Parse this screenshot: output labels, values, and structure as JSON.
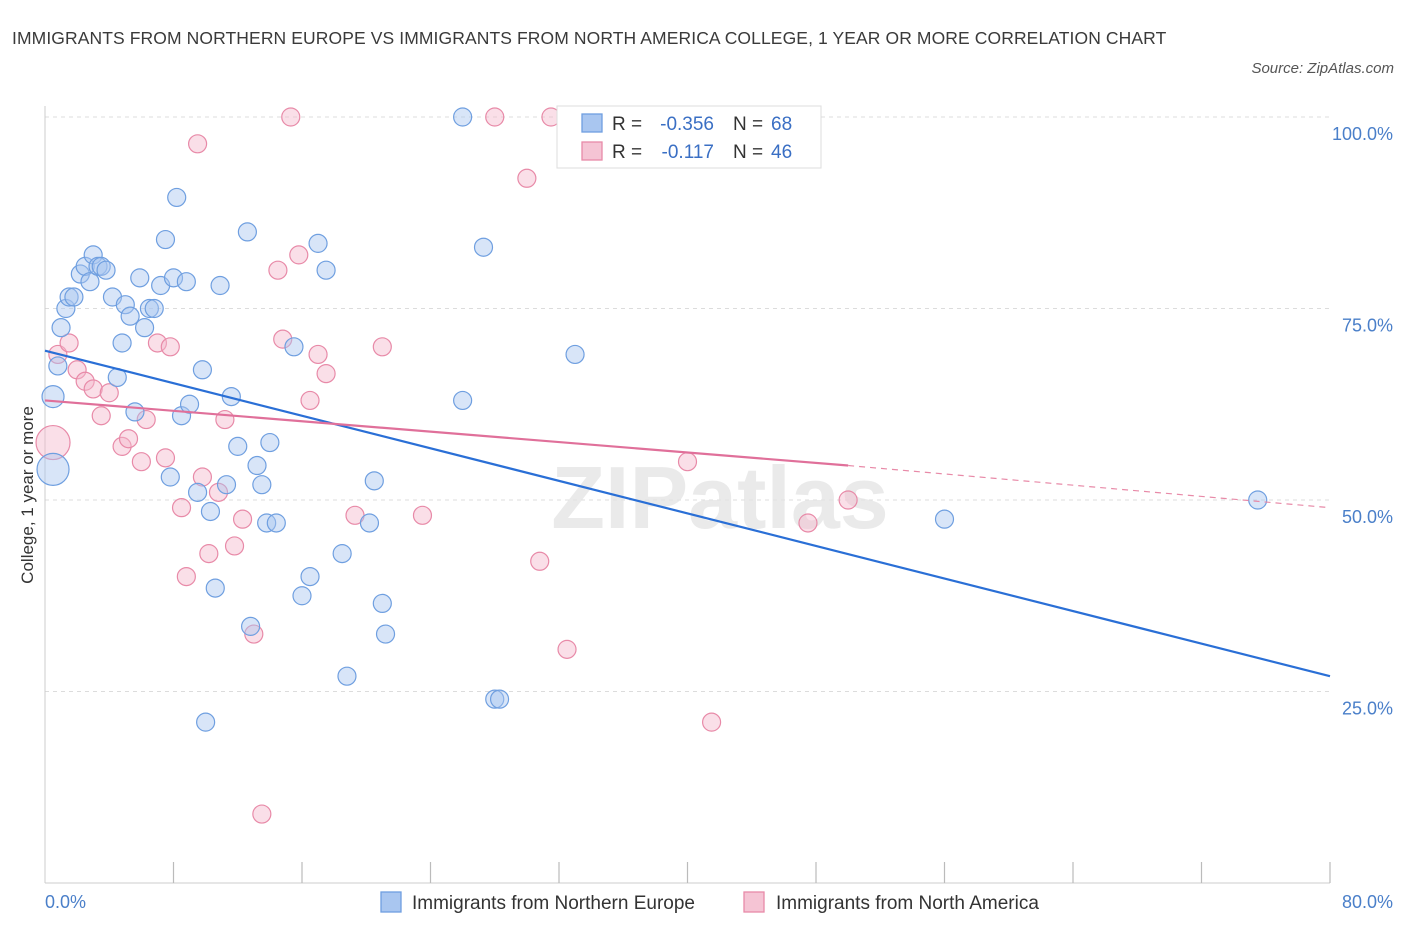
{
  "chart_data": {
    "type": "scatter",
    "title": "IMMIGRANTS FROM NORTHERN EUROPE VS IMMIGRANTS FROM NORTH AMERICA COLLEGE, 1 YEAR OR MORE CORRELATION CHART",
    "source": "Source: ZipAtlas.com",
    "ylabel": "College, 1 year or more",
    "xlim": [
      0,
      80
    ],
    "ylim": [
      0,
      100
    ],
    "x_tick_labels": [
      {
        "value": 0,
        "label": "0.0%"
      },
      {
        "value": 80,
        "label": "80.0%"
      }
    ],
    "y_tick_labels": [
      {
        "value": 100,
        "label": "100.0%"
      },
      {
        "value": 75,
        "label": "75.0%"
      },
      {
        "value": 50,
        "label": "50.0%"
      },
      {
        "value": 25,
        "label": "25.0%"
      }
    ],
    "grid": true,
    "legend": {
      "placement": "top-center"
    },
    "watermark": "ZIPatlas",
    "series": [
      {
        "name": "Immigrants from Northern Europe",
        "color": "#6f9fe0",
        "fill": "#a9c6f0",
        "R_label": "R =",
        "R_value": "-0.356",
        "N_label": "N =",
        "N_value": "68",
        "trend": {
          "x0": 0,
          "y0": 69.5,
          "x1": 80,
          "y1": 27
        },
        "points": [
          [
            0.5,
            54,
            16
          ],
          [
            0.5,
            63.5,
            11
          ],
          [
            0.8,
            67.5,
            9
          ],
          [
            1.0,
            72.5,
            9
          ],
          [
            1.3,
            75,
            9
          ],
          [
            1.5,
            76.5,
            9
          ],
          [
            1.8,
            76.5,
            9
          ],
          [
            2.2,
            79.5,
            9
          ],
          [
            2.5,
            80.5,
            9
          ],
          [
            2.8,
            78.5,
            9
          ],
          [
            3.0,
            82,
            9
          ],
          [
            3.3,
            80.5,
            9
          ],
          [
            3.5,
            80.5,
            9
          ],
          [
            3.8,
            80,
            9
          ],
          [
            4.2,
            76.5,
            9
          ],
          [
            4.5,
            66,
            9
          ],
          [
            4.8,
            70.5,
            9
          ],
          [
            5.0,
            75.5,
            9
          ],
          [
            5.3,
            74,
            9
          ],
          [
            5.6,
            61.5,
            9
          ],
          [
            5.9,
            79,
            9
          ],
          [
            6.2,
            72.5,
            9
          ],
          [
            6.5,
            75,
            9
          ],
          [
            6.8,
            75,
            9
          ],
          [
            7.2,
            78,
            9
          ],
          [
            7.5,
            84,
            9
          ],
          [
            7.8,
            53,
            9
          ],
          [
            8.0,
            79,
            9
          ],
          [
            8.2,
            89.5,
            9
          ],
          [
            8.5,
            61,
            9
          ],
          [
            8.8,
            78.5,
            9
          ],
          [
            9.0,
            62.5,
            9
          ],
          [
            9.5,
            51,
            9
          ],
          [
            9.8,
            67,
            9
          ],
          [
            10.0,
            21,
            9
          ],
          [
            10.3,
            48.5,
            9
          ],
          [
            10.6,
            38.5,
            9
          ],
          [
            10.9,
            78,
            9
          ],
          [
            11.3,
            52,
            9
          ],
          [
            11.6,
            63.5,
            9
          ],
          [
            12.0,
            57,
            9
          ],
          [
            12.6,
            85,
            9
          ],
          [
            12.8,
            33.5,
            9
          ],
          [
            13.2,
            54.5,
            9
          ],
          [
            13.5,
            52,
            9
          ],
          [
            13.8,
            47,
            9
          ],
          [
            14.0,
            57.5,
            9
          ],
          [
            14.4,
            47,
            9
          ],
          [
            15.5,
            70,
            9
          ],
          [
            16.0,
            37.5,
            9
          ],
          [
            16.5,
            40,
            9
          ],
          [
            17.0,
            83.5,
            9
          ],
          [
            17.5,
            80,
            9
          ],
          [
            18.5,
            43,
            9
          ],
          [
            18.8,
            27,
            9
          ],
          [
            20.2,
            47,
            9
          ],
          [
            20.5,
            52.5,
            9
          ],
          [
            21.0,
            36.5,
            9
          ],
          [
            21.2,
            32.5,
            9
          ],
          [
            26.0,
            100,
            9
          ],
          [
            26.0,
            63,
            9
          ],
          [
            27.3,
            83,
            9
          ],
          [
            28.0,
            24,
            9
          ],
          [
            28.3,
            24,
            9
          ],
          [
            33.0,
            69,
            9
          ],
          [
            56.0,
            47.5,
            9
          ],
          [
            75.5,
            50,
            9
          ]
        ]
      },
      {
        "name": "Immigrants from North America",
        "color": "#e88aa8",
        "fill": "#f5b8cc",
        "R_label": "R =",
        "R_value": "-0.117",
        "N_label": "N =",
        "N_value": "46",
        "trend": {
          "x0": 0,
          "y0": 63,
          "x1": 50,
          "y1": 54.5,
          "dash_x1": 80,
          "dash_y1": 49
        },
        "points": [
          [
            0.5,
            57.5,
            17
          ],
          [
            0.8,
            69,
            9
          ],
          [
            1.5,
            70.5,
            9
          ],
          [
            2.0,
            67,
            9
          ],
          [
            2.5,
            65.5,
            9
          ],
          [
            3.0,
            64.5,
            9
          ],
          [
            3.5,
            61,
            9
          ],
          [
            4.0,
            64,
            9
          ],
          [
            4.8,
            57,
            9
          ],
          [
            5.2,
            58,
            9
          ],
          [
            6.0,
            55,
            9
          ],
          [
            6.3,
            60.5,
            9
          ],
          [
            7.0,
            70.5,
            9
          ],
          [
            7.5,
            55.5,
            9
          ],
          [
            7.8,
            70,
            9
          ],
          [
            8.5,
            49,
            9
          ],
          [
            8.8,
            40,
            9
          ],
          [
            9.5,
            96.5,
            9
          ],
          [
            9.8,
            53,
            9
          ],
          [
            10.2,
            43,
            9
          ],
          [
            10.8,
            51,
            9
          ],
          [
            11.2,
            60.5,
            9
          ],
          [
            11.8,
            44,
            9
          ],
          [
            12.3,
            47.5,
            9
          ],
          [
            13.0,
            32.5,
            9
          ],
          [
            13.5,
            9,
            9
          ],
          [
            14.5,
            80,
            9
          ],
          [
            14.8,
            71,
            9
          ],
          [
            15.3,
            100,
            9
          ],
          [
            15.8,
            82,
            9
          ],
          [
            16.5,
            63,
            9
          ],
          [
            17.0,
            69,
            9
          ],
          [
            17.5,
            66.5,
            9
          ],
          [
            19.3,
            48,
            9
          ],
          [
            21.0,
            70,
            9
          ],
          [
            23.5,
            48,
            9
          ],
          [
            28.0,
            100,
            9
          ],
          [
            30.0,
            92,
            9
          ],
          [
            30.8,
            42,
            9
          ],
          [
            31.5,
            100,
            9
          ],
          [
            32.5,
            30.5,
            9
          ],
          [
            40.0,
            55,
            9
          ],
          [
            41.5,
            21,
            9
          ],
          [
            47.5,
            47,
            9
          ],
          [
            50.0,
            50,
            9
          ]
        ]
      }
    ]
  }
}
